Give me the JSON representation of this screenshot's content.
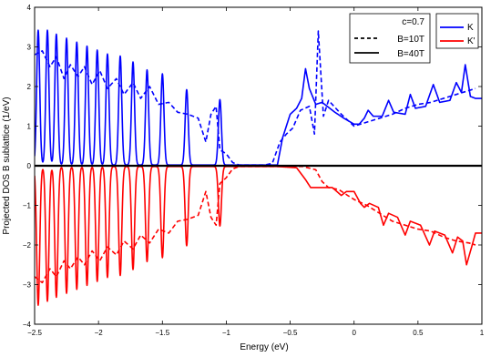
{
  "chart_data": {
    "type": "line",
    "xlabel": "Energy (eV)",
    "ylabel": "Projected DOS B sublattice (1/eV)",
    "xlim": [
      -2.5,
      1.0
    ],
    "ylim": [
      -4,
      4
    ],
    "xticks": [
      -2.5,
      -2,
      -1.5,
      -1,
      -0.5,
      0,
      0.5,
      1
    ],
    "xtick_labels": [
      "−2.5",
      "−2",
      "−1.5",
      "−1",
      "−0.5",
      "0",
      "0.5",
      "1"
    ],
    "yticks": [
      -4,
      -3,
      -2,
      -1,
      0,
      1,
      2,
      3,
      4
    ],
    "ytick_labels": [
      "−4",
      "−3",
      "−2",
      "−1",
      "0",
      "1",
      "2",
      "3",
      "4"
    ],
    "grid": false,
    "zero_line": true,
    "legend_style": {
      "position": "top-right-inner",
      "entries": [
        {
          "label": "c=0.7",
          "style": "none"
        },
        {
          "label": "B=10T",
          "style": "dashed"
        },
        {
          "label": "B=40T",
          "style": "solid"
        }
      ]
    },
    "legend_valley": {
      "position": "top-right",
      "entries": [
        {
          "label": "K",
          "color": "#0000ff"
        },
        {
          "label": "K'",
          "color": "#ff0000"
        }
      ]
    },
    "series": [
      {
        "name": "K",
        "field": "B=40T",
        "color": "#0000ff",
        "dash": "solid",
        "sign": 1,
        "peaks": [
          [
            -2.472,
            3.4
          ],
          [
            -2.4,
            3.4
          ],
          [
            -2.33,
            3.3
          ],
          [
            -2.25,
            3.2
          ],
          [
            -2.17,
            3.1
          ],
          [
            -2.09,
            3.0
          ],
          [
            -2.01,
            2.9
          ],
          [
            -1.93,
            2.8
          ],
          [
            -1.83,
            2.75
          ],
          [
            -1.73,
            2.6
          ],
          [
            -1.62,
            2.4
          ],
          [
            -1.5,
            2.3
          ],
          [
            -1.31,
            1.9
          ],
          [
            -1.05,
            1.65
          ]
        ],
        "valley_floor": 0.02,
        "tail": [
          [
            -0.6,
            0.02
          ],
          [
            -0.56,
            0.7
          ],
          [
            -0.5,
            1.3
          ],
          [
            -0.45,
            1.45
          ],
          [
            -0.41,
            1.7
          ],
          [
            -0.38,
            2.45
          ],
          [
            -0.35,
            1.95
          ],
          [
            -0.3,
            1.55
          ],
          [
            -0.25,
            1.6
          ],
          [
            -0.15,
            1.35
          ],
          [
            -0.08,
            1.2
          ],
          [
            0.0,
            1.05
          ],
          [
            0.04,
            1.05
          ],
          [
            0.08,
            1.2
          ],
          [
            0.11,
            1.4
          ],
          [
            0.15,
            1.25
          ],
          [
            0.22,
            1.25
          ],
          [
            0.27,
            1.65
          ],
          [
            0.31,
            1.35
          ],
          [
            0.4,
            1.3
          ],
          [
            0.44,
            1.8
          ],
          [
            0.48,
            1.45
          ],
          [
            0.56,
            1.5
          ],
          [
            0.62,
            2.05
          ],
          [
            0.67,
            1.6
          ],
          [
            0.75,
            1.65
          ],
          [
            0.8,
            2.1
          ],
          [
            0.84,
            1.85
          ],
          [
            0.87,
            2.55
          ],
          [
            0.91,
            1.75
          ],
          [
            0.95,
            1.7
          ]
        ]
      },
      {
        "name": "K",
        "field": "B=10T",
        "color": "#0000ff",
        "dash": "dashed",
        "sign": 1,
        "points": [
          [
            -2.5,
            2.8
          ],
          [
            -2.44,
            2.9
          ],
          [
            -2.38,
            2.5
          ],
          [
            -2.33,
            2.75
          ],
          [
            -2.27,
            2.2
          ],
          [
            -2.22,
            2.55
          ],
          [
            -2.16,
            2.25
          ],
          [
            -2.11,
            2.5
          ],
          [
            -2.05,
            2.05
          ],
          [
            -1.99,
            2.4
          ],
          [
            -1.93,
            1.95
          ],
          [
            -1.86,
            2.2
          ],
          [
            -1.8,
            1.8
          ],
          [
            -1.73,
            2.1
          ],
          [
            -1.67,
            1.7
          ],
          [
            -1.6,
            2.0
          ],
          [
            -1.53,
            1.55
          ],
          [
            -1.45,
            1.6
          ],
          [
            -1.38,
            1.35
          ],
          [
            -1.3,
            1.3
          ],
          [
            -1.22,
            1.2
          ],
          [
            -1.16,
            0.6
          ],
          [
            -1.12,
            1.3
          ],
          [
            -1.08,
            1.5
          ],
          [
            -1.05,
            0.4
          ],
          [
            -1.0,
            0.3
          ],
          [
            -0.95,
            0.08
          ],
          [
            -0.9,
            0.02
          ],
          [
            -0.7,
            0.02
          ],
          [
            -0.64,
            0.06
          ],
          [
            -0.58,
            0.6
          ],
          [
            -0.53,
            0.8
          ],
          [
            -0.48,
            0.95
          ],
          [
            -0.42,
            1.4
          ],
          [
            -0.35,
            1.5
          ],
          [
            -0.31,
            0.8
          ],
          [
            -0.28,
            3.4
          ],
          [
            -0.24,
            1.25
          ],
          [
            -0.2,
            1.65
          ],
          [
            -0.1,
            1.3
          ],
          [
            0.0,
            1.0
          ],
          [
            0.1,
            1.1
          ],
          [
            0.2,
            1.2
          ],
          [
            0.3,
            1.3
          ],
          [
            0.4,
            1.45
          ],
          [
            0.5,
            1.55
          ],
          [
            0.6,
            1.6
          ],
          [
            0.7,
            1.7
          ],
          [
            0.8,
            1.8
          ],
          [
            0.9,
            1.9
          ],
          [
            0.95,
            1.95
          ]
        ]
      },
      {
        "name": "K'",
        "field": "B=40T",
        "color": "#ff0000",
        "dash": "solid",
        "sign": -1,
        "peaks": [
          [
            -2.472,
            3.5
          ],
          [
            -2.4,
            3.4
          ],
          [
            -2.33,
            3.3
          ],
          [
            -2.25,
            3.2
          ],
          [
            -2.17,
            3.1
          ],
          [
            -2.09,
            3.0
          ],
          [
            -2.01,
            2.9
          ],
          [
            -1.93,
            2.8
          ],
          [
            -1.83,
            2.75
          ],
          [
            -1.73,
            2.6
          ],
          [
            -1.62,
            2.4
          ],
          [
            -1.5,
            2.3
          ],
          [
            -1.31,
            2.0
          ],
          [
            -1.05,
            1.5
          ]
        ],
        "valley_floor": 0.02,
        "tail": [
          [
            -0.6,
            0.02
          ],
          [
            -0.45,
            0.05
          ],
          [
            -0.38,
            0.35
          ],
          [
            -0.34,
            0.55
          ],
          [
            -0.25,
            0.55
          ],
          [
            -0.17,
            0.55
          ],
          [
            -0.1,
            0.75
          ],
          [
            -0.06,
            0.65
          ],
          [
            0.0,
            0.65
          ],
          [
            0.05,
            0.95
          ],
          [
            0.08,
            1.05
          ],
          [
            0.12,
            0.95
          ],
          [
            0.19,
            1.05
          ],
          [
            0.23,
            1.5
          ],
          [
            0.27,
            1.2
          ],
          [
            0.34,
            1.3
          ],
          [
            0.4,
            1.75
          ],
          [
            0.44,
            1.4
          ],
          [
            0.52,
            1.5
          ],
          [
            0.59,
            2.0
          ],
          [
            0.63,
            1.65
          ],
          [
            0.71,
            1.75
          ],
          [
            0.77,
            2.2
          ],
          [
            0.81,
            1.8
          ],
          [
            0.85,
            1.9
          ],
          [
            0.88,
            2.5
          ],
          [
            0.92,
            2.05
          ],
          [
            0.95,
            1.7
          ]
        ]
      },
      {
        "name": "K'",
        "field": "B=10T",
        "color": "#ff0000",
        "dash": "dashed",
        "sign": -1,
        "points": [
          [
            -2.5,
            2.8
          ],
          [
            -2.44,
            2.95
          ],
          [
            -2.38,
            2.6
          ],
          [
            -2.33,
            2.8
          ],
          [
            -2.27,
            2.4
          ],
          [
            -2.22,
            2.6
          ],
          [
            -2.16,
            2.3
          ],
          [
            -2.11,
            2.5
          ],
          [
            -2.05,
            2.15
          ],
          [
            -1.99,
            2.4
          ],
          [
            -1.93,
            2.05
          ],
          [
            -1.86,
            2.25
          ],
          [
            -1.8,
            1.9
          ],
          [
            -1.73,
            2.1
          ],
          [
            -1.67,
            1.75
          ],
          [
            -1.6,
            1.95
          ],
          [
            -1.53,
            1.6
          ],
          [
            -1.45,
            1.7
          ],
          [
            -1.38,
            1.4
          ],
          [
            -1.3,
            1.35
          ],
          [
            -1.22,
            1.25
          ],
          [
            -1.16,
            0.65
          ],
          [
            -1.12,
            1.3
          ],
          [
            -1.08,
            1.5
          ],
          [
            -1.05,
            0.45
          ],
          [
            -1.0,
            0.3
          ],
          [
            -0.95,
            0.08
          ],
          [
            -0.9,
            0.02
          ],
          [
            -0.4,
            0.02
          ],
          [
            -0.3,
            0.1
          ],
          [
            -0.25,
            0.4
          ],
          [
            -0.2,
            0.55
          ],
          [
            -0.12,
            0.6
          ],
          [
            -0.05,
            0.75
          ],
          [
            0.0,
            0.85
          ],
          [
            0.1,
            1.0
          ],
          [
            0.2,
            1.2
          ],
          [
            0.3,
            1.4
          ],
          [
            0.4,
            1.5
          ],
          [
            0.5,
            1.6
          ],
          [
            0.6,
            1.65
          ],
          [
            0.7,
            1.8
          ],
          [
            0.8,
            1.9
          ],
          [
            0.9,
            1.95
          ],
          [
            0.95,
            2.0
          ]
        ]
      }
    ]
  }
}
